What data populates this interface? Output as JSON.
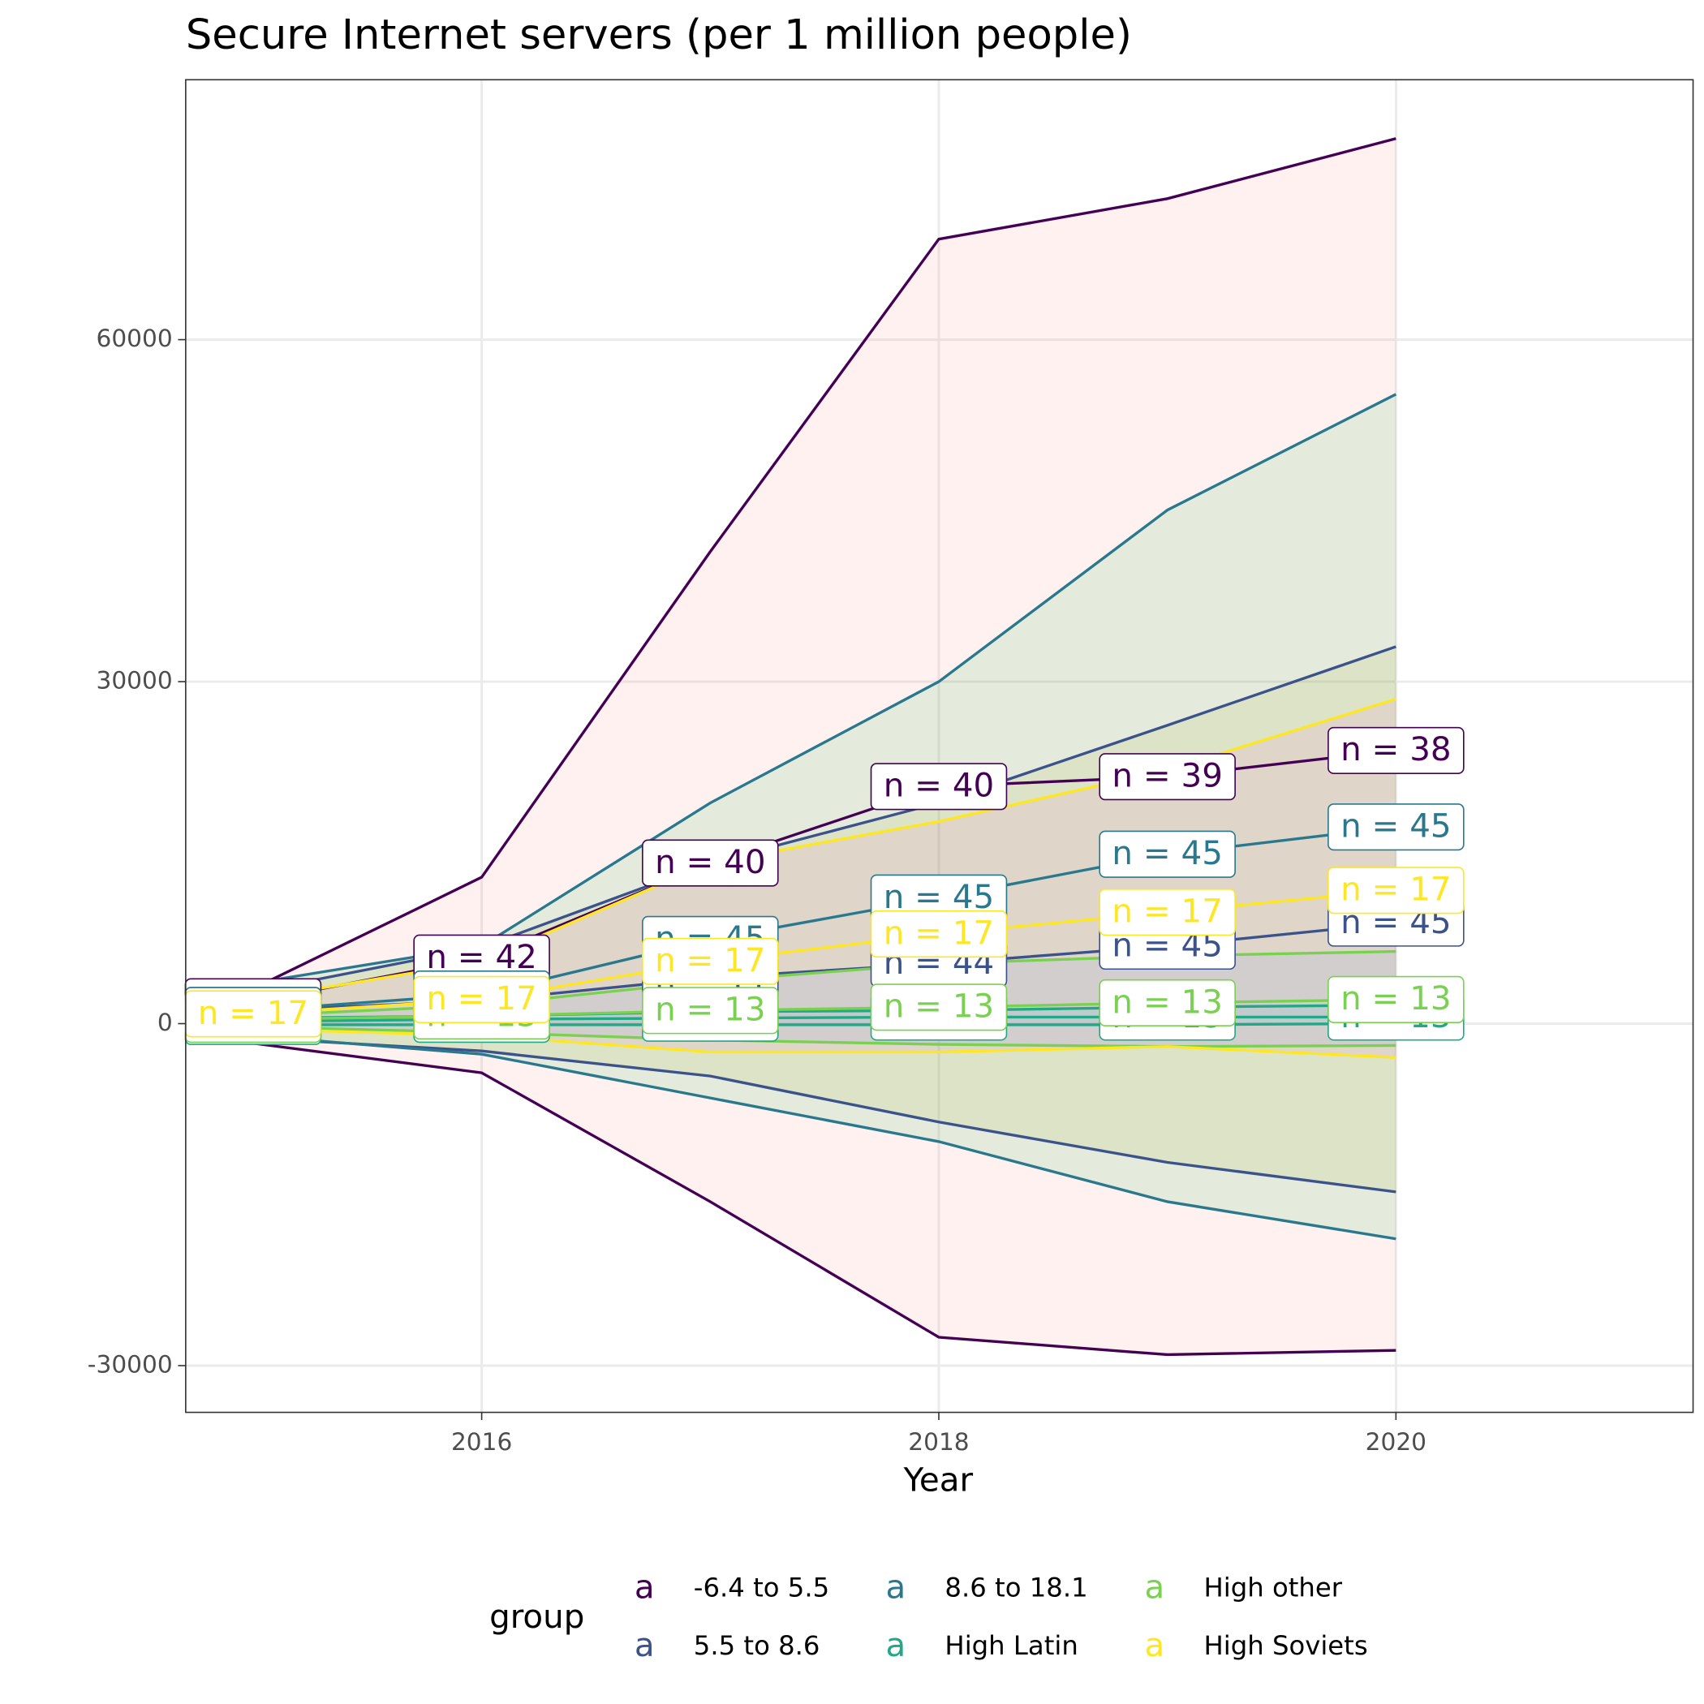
{
  "chart_data": {
    "type": "line",
    "title": "Secure Internet servers (per 1 million people)",
    "x_label": "Year",
    "x": [
      2015,
      2016,
      2017,
      2018,
      2019,
      2020
    ],
    "xlim": [
      2014.705,
      2021.3
    ],
    "xticks": [
      2016,
      2018,
      2020
    ],
    "ylim": [
      -34100,
      82800
    ],
    "yticks": [
      -30000,
      0,
      30000,
      60000
    ],
    "grid": true,
    "legend_title": "group",
    "legend_key": "a",
    "legend_position": "bottom",
    "series": [
      {
        "name": "-6.4 to 5.5",
        "color": "#440154",
        "band_color": "#F8766D",
        "values": [
          1917,
          5750,
          14090,
          20800,
          21660,
          23960
        ],
        "upper": [
          3067,
          12844,
          41400,
          68820,
          72370,
          77640
        ],
        "lower": [
          -1725,
          -4313,
          -15620,
          -27510,
          -29040,
          -28660
        ],
        "labels": [
          "n = 42",
          "n = 42",
          "n = 40",
          "n = 40",
          "n = 39",
          "n = 38"
        ]
      },
      {
        "name": "5.5 to 8.6",
        "color": "#3b528b",
        "band_color": "#B79F00",
        "values": [
          1150,
          2010,
          4030,
          5270,
          6800,
          8820
        ],
        "upper": [
          2780,
          6710,
          14090,
          19360,
          26170,
          33070
        ],
        "lower": [
          -1250,
          -2400,
          -4600,
          -8630,
          -12170,
          -14760
        ],
        "labels": [
          "n = 44",
          "n = 44",
          "n = 44",
          "n = 44",
          "n = 45",
          "n = 45"
        ]
      },
      {
        "name": "8.6 to 18.1",
        "color": "#2a788e",
        "band_color": "#00BA38",
        "values": [
          1150,
          2590,
          7380,
          11020,
          14860,
          17250
        ],
        "upper": [
          3550,
          6800,
          19360,
          30000,
          45050,
          55210
        ],
        "lower": [
          -1050,
          -2680,
          -6520,
          -10350,
          -15620,
          -18880
        ],
        "labels": [
          "n = 45",
          "n = 45",
          "n = 45",
          "n = 45",
          "n = 45",
          "n = 45"
        ]
      },
      {
        "name": "High Latin",
        "color": "#22a884",
        "band_color": "#00BFC4",
        "values": [
          190,
          380,
          480,
          575,
          575,
          575
        ],
        "upper": [
          480,
          670,
          1050,
          1150,
          1440,
          1630
        ],
        "lower": [
          -100,
          -100,
          -100,
          -100,
          -100,
          0
        ],
        "labels": [
          "n = 13",
          "n = 13",
          "n = 13",
          "n = 13",
          "n = 13",
          "n = 13"
        ]
      },
      {
        "name": "High other",
        "color": "#7ad151",
        "band_color": "#619CFF",
        "values": [
          380,
          670,
          1150,
          1440,
          1820,
          2110
        ],
        "upper": [
          670,
          1630,
          3740,
          5270,
          5940,
          6330
        ],
        "lower": [
          -290,
          -770,
          -1440,
          -1820,
          -2010,
          -1920
        ],
        "labels": [
          "n = 13",
          "n = 13",
          "n = 13",
          "n = 13",
          "n = 13",
          "n = 13"
        ]
      },
      {
        "name": "High Soviets",
        "color": "#fde725",
        "band_color": "#F564E3",
        "values": [
          860,
          2110,
          5460,
          7860,
          9780,
          11690
        ],
        "upper": [
          2110,
          5460,
          14090,
          17730,
          22240,
          28470
        ],
        "lower": [
          -480,
          -1050,
          -2490,
          -2490,
          -2010,
          -2970
        ],
        "labels": [
          "n = 17",
          "n = 17",
          "n = 17",
          "n = 17",
          "n = 17",
          "n = 17"
        ]
      }
    ]
  }
}
